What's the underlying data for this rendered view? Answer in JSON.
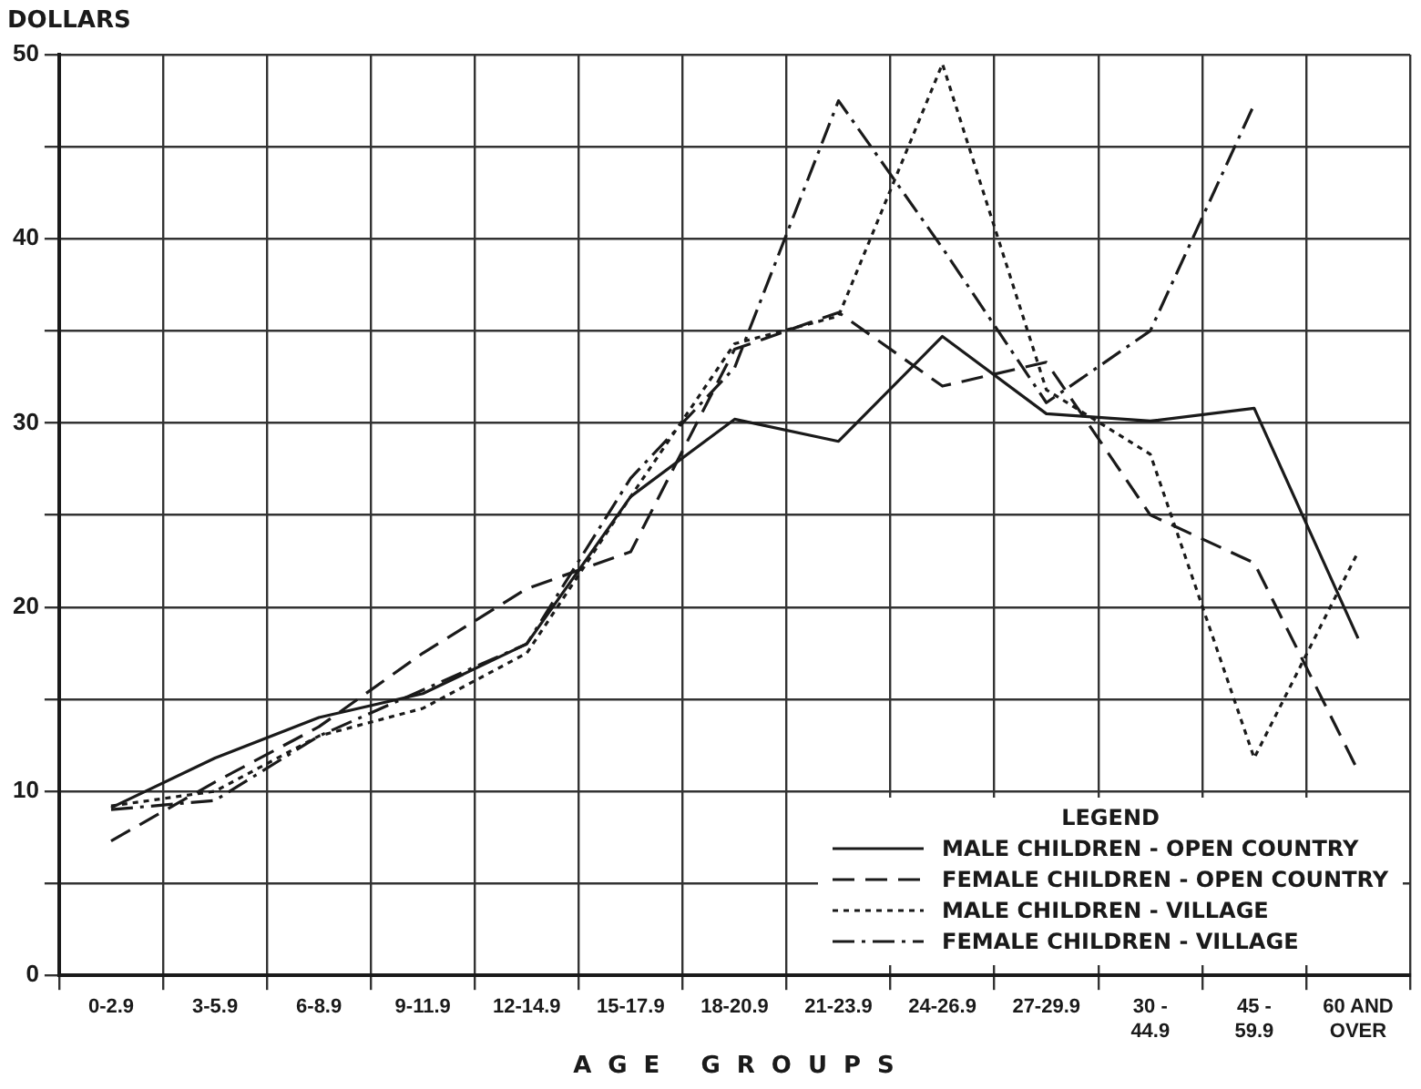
{
  "chart_data": {
    "type": "line",
    "ylabel": "DOLLARS",
    "xlabel": "AGE GROUPS",
    "legend_title": "LEGEND",
    "legend": "bottom right",
    "grid": true,
    "marker": "none",
    "categories": [
      "0-2.9",
      "3-5.9",
      "6-8.9",
      "9-11.9",
      "12-14.9",
      "15-17.9",
      "18-20.9",
      "21-23.9",
      "24-26.9",
      "27-29.9",
      "30 - 44.9",
      "45 - 59.9",
      "60 AND OVER"
    ],
    "ylim": [
      0,
      50
    ],
    "yticks": [
      0,
      {
        "value": 5,
        "label": null
      },
      10,
      {
        "value": 15,
        "label": null
      },
      20,
      {
        "value": 25,
        "label": null
      },
      30,
      {
        "value": 35,
        "label": null
      },
      40,
      {
        "value": 45,
        "label": null
      },
      50
    ],
    "series": [
      {
        "name": "MALE CHILDREN - OPEN COUNTRY",
        "color": "#1a1a1a",
        "line_style": "solid",
        "values": [
          9.1,
          11.8,
          14,
          15.3,
          18,
          26,
          30.2,
          29,
          34.7,
          30.5,
          30.1,
          30.8,
          18.3
        ]
      },
      {
        "name": "FEMALE CHILDREN - OPEN COUNTRY",
        "color": "#1a1a1a",
        "line_style": "dashed",
        "values": [
          7.3,
          10.5,
          13.5,
          17.5,
          21,
          23,
          34,
          36,
          32,
          33.3,
          25,
          22.4,
          11.1
        ]
      },
      {
        "name": "MALE CHILDREN - VILLAGE",
        "color": "#1a1a1a",
        "line_style": "dotted",
        "values": [
          9.2,
          10,
          13,
          14.5,
          17.5,
          26,
          34.3,
          35.8,
          49.5,
          31.8,
          28.3,
          11.8,
          23
        ]
      },
      {
        "name": "FEMALE CHILDREN - VILLAGE",
        "color": "#1a1a1a",
        "line_style": "dashdot",
        "values": [
          9,
          9.5,
          13,
          15.5,
          18,
          27,
          33,
          47.5,
          39.5,
          31.1,
          35,
          47.3,
          null
        ]
      }
    ]
  }
}
